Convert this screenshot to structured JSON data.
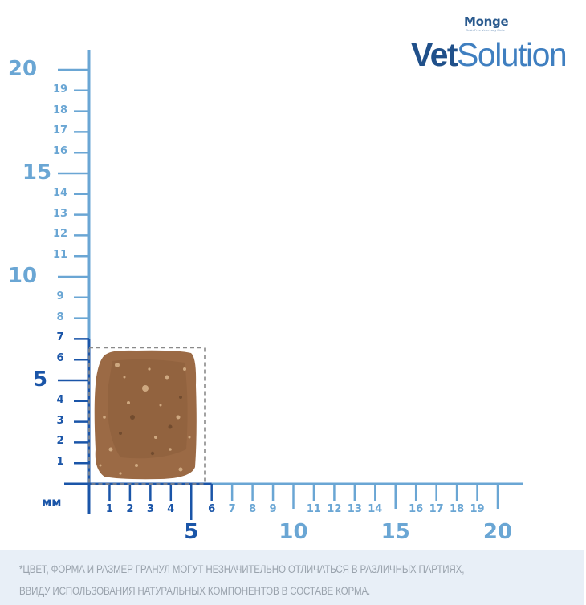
{
  "brand": {
    "parent": "Monge",
    "parent_tagline": "Grain Free Veterinary Diets",
    "product_bold": "Vet",
    "product_light": "Solution"
  },
  "ruler": {
    "unit_label": "мм",
    "dark_color": "#1a55a8",
    "light_color": "#6aa6d4",
    "y_axis": {
      "major": [
        {
          "v": 5,
          "label": "5"
        },
        {
          "v": 10,
          "label": "10"
        },
        {
          "v": 15,
          "label": "15"
        },
        {
          "v": 20,
          "label": "20"
        }
      ],
      "minor": [
        {
          "v": 1,
          "label": "1"
        },
        {
          "v": 2,
          "label": "2"
        },
        {
          "v": 3,
          "label": "3"
        },
        {
          "v": 4,
          "label": "4"
        },
        {
          "v": 6,
          "label": "6"
        },
        {
          "v": 7,
          "label": "7"
        },
        {
          "v": 8,
          "label": "8"
        },
        {
          "v": 9,
          "label": "9"
        },
        {
          "v": 11,
          "label": "11"
        },
        {
          "v": 12,
          "label": "12"
        },
        {
          "v": 13,
          "label": "13"
        },
        {
          "v": 14,
          "label": "14"
        },
        {
          "v": 16,
          "label": "16"
        },
        {
          "v": 17,
          "label": "17"
        },
        {
          "v": 18,
          "label": "18"
        },
        {
          "v": 19,
          "label": "19"
        }
      ]
    },
    "x_axis": {
      "major": [
        {
          "v": 5,
          "label": "5"
        },
        {
          "v": 10,
          "label": "10"
        },
        {
          "v": 15,
          "label": "15"
        },
        {
          "v": 20,
          "label": "20"
        }
      ],
      "minor": [
        {
          "v": 1,
          "label": "1"
        },
        {
          "v": 2,
          "label": "2"
        },
        {
          "v": 3,
          "label": "3"
        },
        {
          "v": 4,
          "label": "4"
        },
        {
          "v": 6,
          "label": "6"
        },
        {
          "v": 7,
          "label": "7"
        },
        {
          "v": 8,
          "label": "8"
        },
        {
          "v": 9,
          "label": "9"
        },
        {
          "v": 11,
          "label": "11"
        },
        {
          "v": 12,
          "label": "12"
        },
        {
          "v": 13,
          "label": "13"
        },
        {
          "v": 14,
          "label": "14"
        },
        {
          "v": 16,
          "label": "16"
        },
        {
          "v": 17,
          "label": "17"
        },
        {
          "v": 18,
          "label": "18"
        },
        {
          "v": 19,
          "label": "19"
        }
      ]
    }
  },
  "kibble": {
    "width_mm": 6,
    "height_mm": 7,
    "fill_color": "#9b6a45"
  },
  "footer": {
    "line1": "*ЦВЕТ, ФОРМА И РАЗМЕР ГРАНУЛ МОГУТ НЕЗНАЧИТЕЛЬНО ОТЛИЧАТЬСЯ В РАЗЛИЧНЫХ ПАРТИЯХ,",
    "line2": "ВВИДУ ИСПОЛЬЗОВАНИЯ НАТУРАЛЬНЫХ КОМПОНЕНТОВ В СОСТАВЕ КОРМА."
  }
}
